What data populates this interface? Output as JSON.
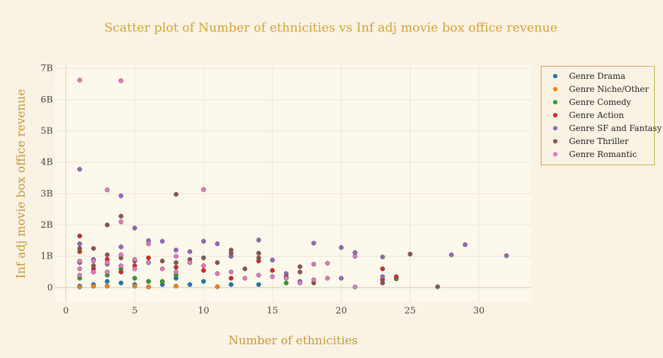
{
  "chart_data": {
    "type": "scatter",
    "title": "Scatter plot of Number of ethnicities vs Inf adj movie box office revenue",
    "xlabel": "Number of ethnicities",
    "ylabel": "Inf adj movie box office revenue",
    "xlim": [
      -0.8,
      33.8
    ],
    "ylim": [
      -0.45,
      7.1
    ],
    "x_ticks": [
      0,
      5,
      10,
      15,
      20,
      25,
      30
    ],
    "x_tick_labels": [
      "0",
      "5",
      "10",
      "15",
      "20",
      "25",
      "30"
    ],
    "y_ticks": [
      0,
      1,
      2,
      3,
      4,
      5,
      6,
      7
    ],
    "y_tick_labels": [
      "0",
      "1B",
      "2B",
      "3B",
      "4B",
      "5B",
      "6B",
      "7B"
    ],
    "y_unit": "billions",
    "legend_position": "top-right",
    "series": [
      {
        "name": "Genre Drama",
        "color": "#1f77b4",
        "points": [
          [
            1,
            0.05
          ],
          [
            2,
            0.1
          ],
          [
            3,
            0.2
          ],
          [
            4,
            0.15
          ],
          [
            5,
            0.1
          ],
          [
            6,
            0.2
          ],
          [
            7,
            0.1
          ],
          [
            8,
            0.3
          ],
          [
            9,
            0.1
          ],
          [
            10,
            0.2
          ],
          [
            12,
            0.1
          ],
          [
            14,
            0.1
          ]
        ]
      },
      {
        "name": "Genre Niche/Other",
        "color": "#ff7f0e",
        "points": [
          [
            1,
            0.02
          ],
          [
            2,
            0.05
          ],
          [
            3,
            0.05
          ],
          [
            5,
            0.05
          ],
          [
            6,
            0.02
          ],
          [
            8,
            0.05
          ],
          [
            11,
            0.03
          ]
        ]
      },
      {
        "name": "Genre Comedy",
        "color": "#2ca02c",
        "points": [
          [
            1,
            0.3
          ],
          [
            2,
            0.5
          ],
          [
            3,
            0.4
          ],
          [
            4,
            0.6
          ],
          [
            5,
            0.3
          ],
          [
            6,
            0.2
          ],
          [
            7,
            0.2
          ],
          [
            8,
            0.4
          ],
          [
            16,
            0.15
          ],
          [
            24,
            0.28
          ]
        ]
      },
      {
        "name": "Genre Action",
        "color": "#d62728",
        "points": [
          [
            1,
            1.65
          ],
          [
            1,
            1.15
          ],
          [
            1,
            0.8
          ],
          [
            2,
            0.6
          ],
          [
            3,
            0.9
          ],
          [
            4,
            0.5
          ],
          [
            5,
            0.7
          ],
          [
            6,
            0.95
          ],
          [
            8,
            0.65
          ],
          [
            10,
            0.55
          ],
          [
            12,
            0.3
          ],
          [
            14,
            0.85
          ],
          [
            15,
            0.55
          ],
          [
            23,
            0.6
          ],
          [
            23,
            0.25
          ],
          [
            24,
            0.35
          ]
        ]
      },
      {
        "name": "Genre SF and Fantasy",
        "color": "#9467bd",
        "points": [
          [
            1,
            3.78
          ],
          [
            1,
            1.4
          ],
          [
            1,
            0.8
          ],
          [
            2,
            0.9
          ],
          [
            3,
            0.75
          ],
          [
            4,
            2.93
          ],
          [
            4,
            1.3
          ],
          [
            5,
            1.9
          ],
          [
            6,
            1.5
          ],
          [
            7,
            1.48
          ],
          [
            8,
            1.2
          ],
          [
            9,
            1.15
          ],
          [
            10,
            1.48
          ],
          [
            11,
            1.4
          ],
          [
            12,
            1.0
          ],
          [
            14,
            1.52
          ],
          [
            15,
            0.88
          ],
          [
            16,
            0.45
          ],
          [
            17,
            0.2
          ],
          [
            18,
            1.42
          ],
          [
            20,
            1.28
          ],
          [
            20,
            0.3
          ],
          [
            21,
            1.12
          ],
          [
            23,
            0.98
          ],
          [
            23,
            0.35
          ],
          [
            28,
            1.05
          ],
          [
            29,
            1.37
          ],
          [
            32,
            1.02
          ]
        ]
      },
      {
        "name": "Genre Thriller",
        "color": "#8c564b",
        "points": [
          [
            1,
            1.25
          ],
          [
            2,
            1.25
          ],
          [
            2,
            0.7
          ],
          [
            3,
            2.0
          ],
          [
            3,
            1.05
          ],
          [
            4,
            2.28
          ],
          [
            4,
            0.95
          ],
          [
            5,
            0.85
          ],
          [
            6,
            0.8
          ],
          [
            7,
            0.85
          ],
          [
            8,
            2.98
          ],
          [
            8,
            0.8
          ],
          [
            9,
            0.9
          ],
          [
            10,
            0.95
          ],
          [
            11,
            0.8
          ],
          [
            12,
            1.2
          ],
          [
            12,
            1.1
          ],
          [
            13,
            0.6
          ],
          [
            14,
            1.1
          ],
          [
            14,
            0.95
          ],
          [
            16,
            0.35
          ],
          [
            17,
            0.67
          ],
          [
            17,
            0.5
          ],
          [
            18,
            0.15
          ],
          [
            23,
            0.15
          ],
          [
            25,
            1.07
          ],
          [
            27,
            0.03
          ]
        ]
      },
      {
        "name": "Genre Romantic",
        "color": "#e377c2",
        "points": [
          [
            1,
            6.62
          ],
          [
            1,
            0.85
          ],
          [
            1,
            0.6
          ],
          [
            1,
            0.4
          ],
          [
            2,
            0.85
          ],
          [
            2,
            0.5
          ],
          [
            3,
            3.12
          ],
          [
            3,
            0.8
          ],
          [
            3,
            0.5
          ],
          [
            4,
            6.6
          ],
          [
            4,
            2.1
          ],
          [
            4,
            1.05
          ],
          [
            4,
            0.7
          ],
          [
            5,
            0.9
          ],
          [
            5,
            0.6
          ],
          [
            6,
            1.4
          ],
          [
            6,
            0.8
          ],
          [
            7,
            0.6
          ],
          [
            8,
            1.0
          ],
          [
            8,
            0.5
          ],
          [
            9,
            0.8
          ],
          [
            10,
            3.13
          ],
          [
            10,
            0.7
          ],
          [
            11,
            0.45
          ],
          [
            12,
            0.5
          ],
          [
            13,
            0.3
          ],
          [
            14,
            0.4
          ],
          [
            15,
            0.35
          ],
          [
            16,
            0.3
          ],
          [
            17,
            0.15
          ],
          [
            18,
            0.75
          ],
          [
            18,
            0.25
          ],
          [
            19,
            0.78
          ],
          [
            19,
            0.3
          ],
          [
            21,
            1.0
          ],
          [
            21,
            0.02
          ]
        ]
      }
    ]
  }
}
